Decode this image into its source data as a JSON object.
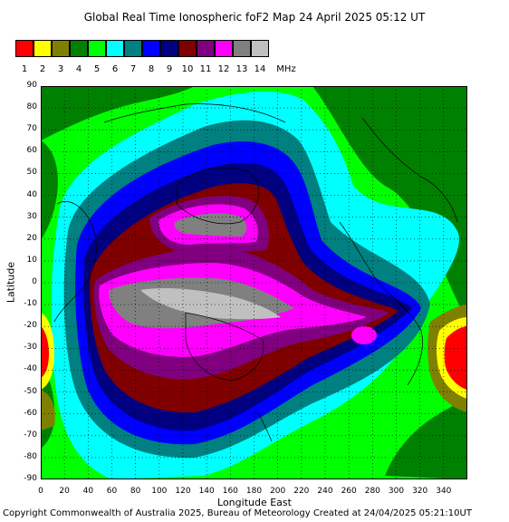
{
  "title": "Global Real Time Ionospheric foF2 Map  24 April 2025 05:12 UT",
  "legend": {
    "colors": [
      "#ff0000",
      "#ffff00",
      "#808000",
      "#008000",
      "#00ff00",
      "#00ffff",
      "#008080",
      "#0000ff",
      "#000080",
      "#800000",
      "#800080",
      "#ff00ff",
      "#808080",
      "#c0c0c0"
    ],
    "labels": [
      "1",
      "2",
      "3",
      "4",
      "5",
      "6",
      "7",
      "8",
      "9",
      "10",
      "11",
      "12",
      "13",
      "14"
    ],
    "unit": "MHz"
  },
  "y_axis": {
    "title": "Latitude",
    "ticks": [
      "90",
      "80",
      "70",
      "60",
      "50",
      "40",
      "30",
      "20",
      "10",
      "0",
      "-10",
      "-20",
      "-30",
      "-40",
      "-50",
      "-60",
      "-70",
      "-80",
      "-90"
    ]
  },
  "x_axis": {
    "title": "Longitude East",
    "ticks": [
      "0",
      "20",
      "40",
      "60",
      "80",
      "100",
      "120",
      "140",
      "160",
      "180",
      "200",
      "220",
      "240",
      "260",
      "280",
      "300",
      "320",
      "340"
    ]
  },
  "footer": "Copyright Commonwealth of Australia 2025, Bureau of Meteorology    Created at 24/04/2025 05:21:10UT"
}
